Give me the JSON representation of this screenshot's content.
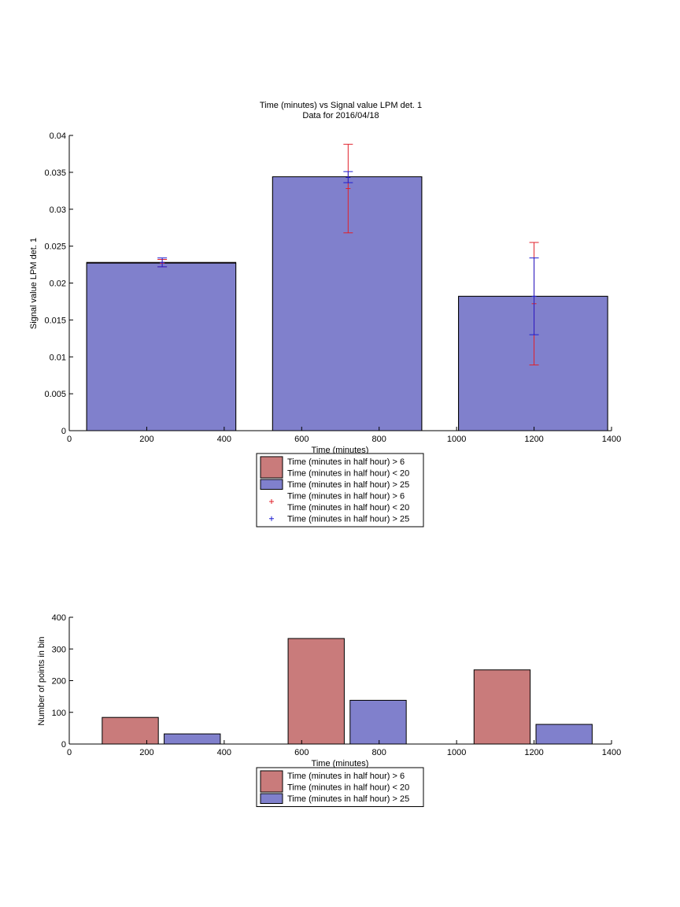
{
  "chart_data": [
    {
      "type": "bar",
      "title": "Time (minutes) vs Signal value LPM det. 1",
      "subtitle": "Data for 2016/04/18",
      "xlabel": "Time (minutes)",
      "ylabel": "Signal value LPM det. 1",
      "xlim": [
        0,
        1400
      ],
      "ylim": [
        0,
        0.04
      ],
      "xticks": [
        "0",
        "200",
        "400",
        "600",
        "800",
        "1000",
        "1200",
        "1400"
      ],
      "yticks": [
        "0",
        "0.005",
        "0.01",
        "0.015",
        "0.02",
        "0.025",
        "0.03",
        "0.035",
        "0.04"
      ],
      "grid": false,
      "legend_position": "bottom",
      "series": [
        {
          "name": "Time (minutes in half hour) > 6\nTime (minutes in half hour) < 20",
          "color": "#c97b7b",
          "bars": [
            {
              "x_start": 45,
              "x_end": 430,
              "value": 0.0228
            },
            {
              "x_start": 525,
              "x_end": 910,
              "value": 0.0344
            },
            {
              "x_start": 1005,
              "x_end": 1390,
              "value": 0.0182
            }
          ]
        },
        {
          "name": "Time (minutes in half hour) > 25",
          "color": "#8080cc",
          "bars": [
            {
              "x_start": 45,
              "x_end": 430,
              "value": 0.0227
            },
            {
              "x_start": 525,
              "x_end": 910,
              "value": 0.0344
            },
            {
              "x_start": 1005,
              "x_end": 1390,
              "value": 0.0182
            }
          ]
        }
      ],
      "errorbars": [
        {
          "name": "Time (minutes in half hour) > 6\nTime (minutes in half hour) < 20",
          "color": "#e0202a",
          "points": [
            {
              "x": 240,
              "y": 0.0227,
              "low": 0.0222,
              "high": 0.0232
            },
            {
              "x": 720,
              "y": 0.0328,
              "low": 0.0268,
              "high": 0.0388
            },
            {
              "x": 1200,
              "y": 0.0172,
              "low": 0.0089,
              "high": 0.0255
            }
          ]
        },
        {
          "name": "Time (minutes in half hour) > 25",
          "color": "#1f1fd0",
          "points": [
            {
              "x": 240,
              "y": 0.0228,
              "low": 0.0222,
              "high": 0.0234
            },
            {
              "x": 720,
              "y": 0.0343,
              "low": 0.0336,
              "high": 0.0351
            },
            {
              "x": 1200,
              "y": 0.0182,
              "low": 0.013,
              "high": 0.0234
            }
          ]
        }
      ]
    },
    {
      "type": "bar",
      "title": "",
      "xlabel": "Time (minutes)",
      "ylabel": "Number of points in bin",
      "xlim": [
        0,
        1400
      ],
      "ylim": [
        0,
        400
      ],
      "xticks": [
        "0",
        "200",
        "400",
        "600",
        "800",
        "1000",
        "1200",
        "1400"
      ],
      "yticks": [
        "0",
        "100",
        "200",
        "300",
        "400"
      ],
      "grid": false,
      "legend_position": "bottom",
      "series": [
        {
          "name": "Time (minutes in half hour) > 6\nTime (minutes in half hour) < 20",
          "color": "#c97b7b",
          "bars": [
            {
              "x_start": 85,
              "x_end": 230,
              "value": 84
            },
            {
              "x_start": 565,
              "x_end": 710,
              "value": 333
            },
            {
              "x_start": 1045,
              "x_end": 1190,
              "value": 234
            }
          ]
        },
        {
          "name": "Time (minutes in half hour) > 25",
          "color": "#8080cc",
          "bars": [
            {
              "x_start": 245,
              "x_end": 390,
              "value": 32
            },
            {
              "x_start": 725,
              "x_end": 870,
              "value": 138
            },
            {
              "x_start": 1205,
              "x_end": 1350,
              "value": 62
            }
          ]
        }
      ]
    }
  ],
  "legend_top": [
    {
      "kind": "patch",
      "color": "#c97b7b",
      "lines": [
        "Time (minutes in half hour) > 6",
        "Time (minutes in half hour) < 20"
      ]
    },
    {
      "kind": "patch",
      "color": "#8080cc",
      "lines": [
        "Time (minutes in half hour) > 25"
      ]
    },
    {
      "kind": "marker",
      "color": "#e0202a",
      "lines": [
        "Time (minutes in half hour) > 6",
        "Time (minutes in half hour) < 20"
      ]
    },
    {
      "kind": "marker",
      "color": "#1f1fd0",
      "lines": [
        "Time (minutes in half hour) > 25"
      ]
    }
  ],
  "legend_bottom": [
    {
      "kind": "patch",
      "color": "#c97b7b",
      "lines": [
        "Time (minutes in half hour) > 6",
        "Time (minutes in half hour) < 20"
      ]
    },
    {
      "kind": "patch",
      "color": "#8080cc",
      "lines": [
        "Time (minutes in half hour) > 25"
      ]
    }
  ]
}
